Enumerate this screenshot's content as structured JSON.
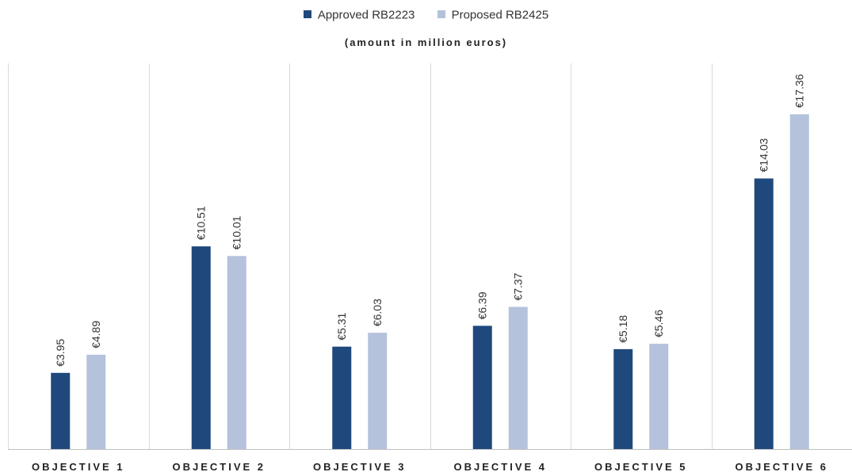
{
  "chart_data": {
    "type": "bar",
    "subtitle": "(amount in million euros)",
    "categories": [
      "OBJECTIVE 1",
      "OBJECTIVE 2",
      "OBJECTIVE 3",
      "OBJECTIVE 4",
      "OBJECTIVE 5",
      "OBJECTIVE 6"
    ],
    "series": [
      {
        "name": "Approved RB2223",
        "color": "#1f497d",
        "values": [
          3.95,
          10.51,
          5.31,
          6.39,
          5.18,
          14.03
        ],
        "labels": [
          "€3.95",
          "€10.51",
          "€5.31",
          "€6.39",
          "€5.18",
          "€14.03"
        ]
      },
      {
        "name": "Proposed RB2425",
        "color": "#b4c2dc",
        "values": [
          4.89,
          10.01,
          6.03,
          7.37,
          5.46,
          17.36
        ],
        "labels": [
          "€4.89",
          "€10.01",
          "€6.03",
          "€7.37",
          "€5.46",
          "€17.36"
        ]
      }
    ],
    "ylim": [
      0,
      20
    ],
    "legend_position": "top-center",
    "grid": false,
    "category_separators": true
  }
}
